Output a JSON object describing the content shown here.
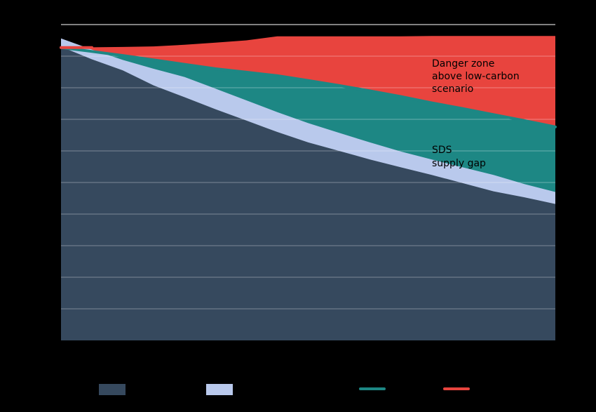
{
  "chart_data": {
    "type": "area",
    "title": "",
    "xlabel": "",
    "ylabel": "",
    "ylim": [
      0,
      100
    ],
    "grid": true,
    "legend_position": "bottom",
    "x": [
      0,
      2,
      4,
      6,
      8,
      10,
      12,
      14,
      16,
      18,
      20,
      22,
      24,
      26,
      28,
      30,
      32
    ],
    "series": [
      {
        "kind": "area",
        "color": "#36495e",
        "values": [
          93.0,
          89.0,
          85.5,
          80.7,
          77.0,
          73.2,
          69.6,
          66.0,
          62.7,
          60.0,
          57.3,
          54.8,
          52.4,
          49.8,
          47.2,
          45.3,
          43.2
        ]
      },
      {
        "kind": "area",
        "color": "#b9c9ec",
        "values": [
          95.6,
          92.1,
          88.8,
          86.0,
          83.4,
          79.7,
          76.0,
          72.3,
          68.8,
          65.7,
          62.7,
          59.8,
          57.3,
          54.8,
          52.4,
          49.5,
          47.0
        ]
      },
      {
        "kind": "area",
        "color": "#1d8784",
        "values": [
          92.7,
          91.5,
          90.2,
          88.8,
          87.4,
          86.0,
          84.9,
          83.8,
          82.3,
          80.7,
          79.0,
          77.2,
          75.2,
          73.4,
          71.5,
          69.6,
          67.6
        ]
      },
      {
        "kind": "line",
        "color": "#1d8784",
        "values": [
          92.7,
          91.5,
          90.2,
          88.8,
          87.4,
          86.0,
          84.9,
          83.8,
          82.3,
          80.7,
          79.0,
          77.2,
          75.2,
          73.4,
          71.5,
          69.6,
          67.6
        ]
      },
      {
        "kind": "area",
        "color": "#e8443e",
        "values": [
          92.7,
          92.8,
          92.9,
          93.1,
          93.6,
          94.3,
          95.0,
          96.3,
          96.3,
          96.3,
          96.3,
          96.3,
          96.4,
          96.4,
          96.4,
          96.4,
          96.4
        ]
      },
      {
        "kind": "line",
        "color": "#e8443e",
        "values": [
          92.7,
          92.7,
          92.7,
          92.7,
          92.7,
          92.7,
          92.7,
          92.7,
          92.7,
          92.7,
          92.7,
          92.7,
          92.7,
          92.7,
          92.7,
          92.7,
          92.7
        ],
        "visible_span": [
          0,
          2
        ]
      }
    ],
    "annotations": [
      {
        "lines": [
          "Danger zone",
          "above low-carbon",
          "scenario"
        ]
      },
      {
        "lines": [
          "SDS",
          "supply gap"
        ]
      }
    ]
  }
}
